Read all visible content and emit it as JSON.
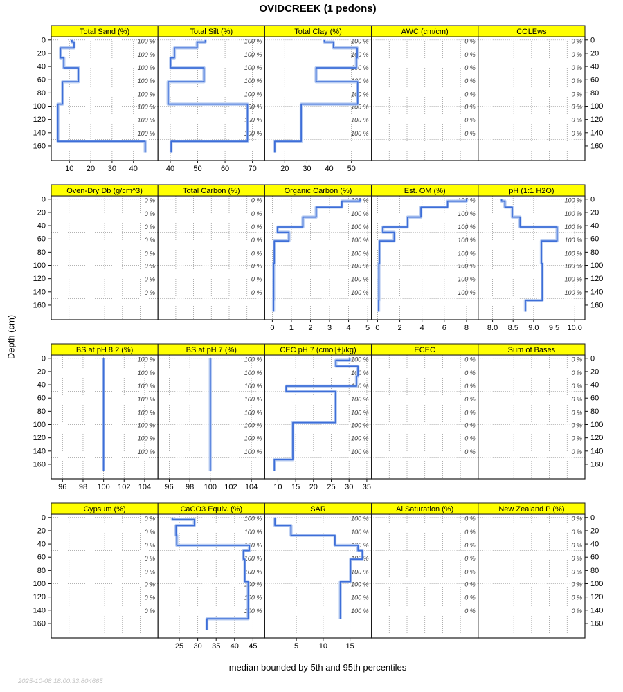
{
  "title": "OVIDCREEK (1 pedons)",
  "ylabel": "Depth (cm)",
  "caption": "median bounded by 5th and 95th percentiles",
  "timestamp": "2025-10-08 18:00:33.804665",
  "colors": {
    "strip_bg": "#FFFF00",
    "line": "#3D6ED8",
    "band": "#B9CDF2",
    "border": "#1a1a1a",
    "grid": "#999999",
    "pct_label": "#3a3a3a",
    "timestamp": "#c3c3c3"
  },
  "depth_axis": {
    "ticks": [
      0,
      20,
      40,
      60,
      80,
      100,
      120,
      140,
      160
    ],
    "ylim": [
      -5,
      182
    ],
    "grid_depths": [
      0,
      50,
      100,
      150
    ]
  },
  "pct_label_depths": [
    2,
    22,
    42,
    62,
    82,
    101,
    121,
    141
  ],
  "chart_data": {
    "type": "line",
    "subtype": "step-depth-profile",
    "x_is_value_y_is_depth_cm": true,
    "rows": [
      {
        "panels": [
          {
            "title": "Total Sand (%)",
            "pct": "100 %",
            "xlim": [
              1.5,
              51.5
            ],
            "xticks": [
              {
                "v": 10,
                "label": "10"
              },
              {
                "v": 20,
                "label": "20"
              },
              {
                "v": 30,
                "label": "30"
              },
              {
                "v": 40,
                "label": "40"
              }
            ],
            "segments": [
              [
                0,
                3,
                11.2
              ],
              [
                3,
                12,
                12.2
              ],
              [
                12,
                27,
                5.8
              ],
              [
                27,
                42,
                7.4
              ],
              [
                42,
                63,
                14.2
              ],
              [
                63,
                97,
                6.8
              ],
              [
                97,
                153,
                4.6
              ],
              [
                153,
                170,
                45.5
              ]
            ]
          },
          {
            "title": "Total Silt (%)",
            "pct": "100 %",
            "xlim": [
              35.5,
              74.5
            ],
            "xticks": [
              {
                "v": 40,
                "label": "40"
              },
              {
                "v": 50,
                "label": "50"
              },
              {
                "v": 60,
                "label": "60"
              },
              {
                "v": 70,
                "label": "70"
              }
            ],
            "segments": [
              [
                0,
                3,
                52.8
              ],
              [
                3,
                12,
                49.8
              ],
              [
                12,
                27,
                41.5
              ],
              [
                27,
                42,
                40.1
              ],
              [
                42,
                63,
                52.3
              ],
              [
                63,
                97,
                39.2
              ],
              [
                97,
                153,
                68.2
              ],
              [
                153,
                170,
                40.3
              ]
            ]
          },
          {
            "title": "Total Clay (%)",
            "pct": "100 %",
            "xlim": [
              11,
              59
            ],
            "xticks": [
              {
                "v": 20,
                "label": "20"
              },
              {
                "v": 30,
                "label": "30"
              },
              {
                "v": 40,
                "label": "40"
              },
              {
                "v": 50,
                "label": "50"
              }
            ],
            "segments": [
              [
                0,
                3,
                37.8
              ],
              [
                3,
                12,
                41.9
              ],
              [
                12,
                27,
                52.6
              ],
              [
                27,
                42,
                52.2
              ],
              [
                42,
                63,
                34.1
              ],
              [
                63,
                97,
                52.8
              ],
              [
                97,
                153,
                27.4
              ],
              [
                153,
                170,
                15.5
              ]
            ]
          },
          {
            "title": "AWC (cm/cm)",
            "pct": "0 %",
            "xlim": [
              0,
              1
            ],
            "xticks": [],
            "segments": []
          },
          {
            "title": "COLEws",
            "pct": "0 %",
            "xlim": [
              0,
              1
            ],
            "xticks": [],
            "segments": []
          }
        ]
      },
      {
        "panels": [
          {
            "title": "Oven-Dry Db (g/cm^3)",
            "pct": "0 %",
            "xlim": [
              0,
              1
            ],
            "xticks": [],
            "segments": []
          },
          {
            "title": "Total Carbon (%)",
            "pct": "0 %",
            "xlim": [
              0,
              1
            ],
            "xticks": [],
            "segments": []
          },
          {
            "title": "Organic Carbon (%)",
            "pct": "100 %",
            "xlim": [
              -0.4,
              5.2
            ],
            "xticks": [
              {
                "v": 0,
                "label": "0"
              },
              {
                "v": 1,
                "label": "1"
              },
              {
                "v": 2,
                "label": "2"
              },
              {
                "v": 3,
                "label": "3"
              },
              {
                "v": 4,
                "label": "4"
              },
              {
                "v": 5,
                "label": "5"
              }
            ],
            "segments": [
              [
                0,
                3,
                4.6
              ],
              [
                3,
                12,
                3.65
              ],
              [
                12,
                27,
                2.3
              ],
              [
                27,
                42,
                1.6
              ],
              [
                42,
                50,
                0.27
              ],
              [
                50,
                63,
                0.87
              ],
              [
                63,
                97,
                0.1
              ],
              [
                97,
                153,
                0.07
              ],
              [
                153,
                170,
                0.06
              ]
            ]
          },
          {
            "title": "Est. OM (%)",
            "pct": "100 %",
            "xlim": [
              -0.55,
              9.05
            ],
            "xticks": [
              {
                "v": 0,
                "label": "0"
              },
              {
                "v": 2,
                "label": "2"
              },
              {
                "v": 4,
                "label": "4"
              },
              {
                "v": 6,
                "label": "6"
              },
              {
                "v": 8,
                "label": "8"
              }
            ],
            "segments": [
              [
                0,
                3,
                8.0
              ],
              [
                3,
                12,
                6.3
              ],
              [
                12,
                27,
                3.9
              ],
              [
                27,
                42,
                2.7
              ],
              [
                42,
                50,
                0.47
              ],
              [
                50,
                63,
                1.5
              ],
              [
                63,
                97,
                0.18
              ],
              [
                97,
                153,
                0.12
              ],
              [
                153,
                170,
                0.1
              ]
            ]
          },
          {
            "title": "pH (1:1 H2O)",
            "pct": "100 %",
            "xlim": [
              7.65,
              10.25
            ],
            "xticks": [
              {
                "v": 8.0,
                "label": "8.0"
              },
              {
                "v": 8.5,
                "label": "8.5"
              },
              {
                "v": 9.0,
                "label": "9.0"
              },
              {
                "v": 9.5,
                "label": "9.5"
              },
              {
                "v": 10.0,
                "label": "10.0"
              }
            ],
            "segments": [
              [
                0,
                3,
                8.22
              ],
              [
                3,
                12,
                8.3
              ],
              [
                12,
                27,
                8.48
              ],
              [
                27,
                42,
                8.67
              ],
              [
                42,
                63,
                9.57
              ],
              [
                63,
                97,
                9.19
              ],
              [
                97,
                153,
                9.21
              ],
              [
                153,
                170,
                8.8
              ]
            ]
          }
        ]
      },
      {
        "panels": [
          {
            "title": "BS at pH 8.2 (%)",
            "pct": "100 %",
            "xlim": [
              94.9,
              105.3
            ],
            "xticks": [
              {
                "v": 96,
                "label": "96"
              },
              {
                "v": 98,
                "label": "98"
              },
              {
                "v": 100,
                "label": "100"
              },
              {
                "v": 102,
                "label": "102"
              },
              {
                "v": 104,
                "label": "104"
              }
            ],
            "segments": [
              [
                0,
                170,
                100
              ]
            ]
          },
          {
            "title": "BS at pH 7 (%)",
            "pct": "100 %",
            "xlim": [
              94.9,
              105.3
            ],
            "xticks": [
              {
                "v": 96,
                "label": "96"
              },
              {
                "v": 98,
                "label": "98"
              },
              {
                "v": 100,
                "label": "100"
              },
              {
                "v": 102,
                "label": "102"
              },
              {
                "v": 104,
                "label": "104"
              }
            ],
            "segments": [
              [
                0,
                170,
                100
              ]
            ]
          },
          {
            "title": "CEC pH 7 (cmol[+]/kg)",
            "pct": "100 %",
            "xlim": [
              6.3,
              36.3
            ],
            "xticks": [
              {
                "v": 10,
                "label": "10"
              },
              {
                "v": 15,
                "label": "15"
              },
              {
                "v": 20,
                "label": "20"
              },
              {
                "v": 25,
                "label": "25"
              },
              {
                "v": 30,
                "label": "30"
              },
              {
                "v": 35,
                "label": "35"
              }
            ],
            "segments": [
              [
                0,
                3,
                30.2
              ],
              [
                3,
                12,
                26.3
              ],
              [
                12,
                27,
                32.5
              ],
              [
                27,
                42,
                32.1
              ],
              [
                42,
                50,
                12.3
              ],
              [
                50,
                97,
                26.2
              ],
              [
                97,
                153,
                14.2
              ],
              [
                153,
                170,
                9.0
              ]
            ]
          },
          {
            "title": "ECEC",
            "pct": "0 %",
            "xlim": [
              0,
              1
            ],
            "xticks": [],
            "segments": []
          },
          {
            "title": "Sum of Bases",
            "pct": "0 %",
            "xlim": [
              0,
              1
            ],
            "xticks": [],
            "segments": []
          }
        ]
      },
      {
        "panels": [
          {
            "title": "Gypsum (%)",
            "pct": "0 %",
            "xlim": [
              0,
              1
            ],
            "xticks": [],
            "segments": []
          },
          {
            "title": "CaCO3 Equiv. (%)",
            "pct": "100 %",
            "xlim": [
              19.2,
              48.2
            ],
            "xticks": [
              {
                "v": 25,
                "label": "25"
              },
              {
                "v": 30,
                "label": "30"
              },
              {
                "v": 35,
                "label": "35"
              },
              {
                "v": 40,
                "label": "40"
              },
              {
                "v": 45,
                "label": "45"
              }
            ],
            "segments": [
              [
                0,
                3,
                23.1
              ],
              [
                3,
                12,
                29.1
              ],
              [
                12,
                27,
                24.1
              ],
              [
                27,
                42,
                24.3
              ],
              [
                42,
                50,
                44.0
              ],
              [
                50,
                63,
                42.4
              ],
              [
                63,
                97,
                42.8
              ],
              [
                97,
                153,
                43.7
              ],
              [
                153,
                170,
                32.5
              ]
            ]
          },
          {
            "title": "SAR",
            "pct": "100 %",
            "xlim": [
              -0.9,
              19.0
            ],
            "xticks": [
              {
                "v": 5,
                "label": "5"
              },
              {
                "v": 10,
                "label": "10"
              },
              {
                "v": 15,
                "label": "15"
              }
            ],
            "segments": [
              [
                0,
                12,
                1.0
              ],
              [
                12,
                27,
                4.0
              ],
              [
                27,
                42,
                12.2
              ],
              [
                42,
                50,
                16.5
              ],
              [
                50,
                63,
                17.3
              ],
              [
                63,
                97,
                15.1
              ],
              [
                97,
                153,
                13.2
              ]
            ]
          },
          {
            "title": "Al Saturation (%)",
            "pct": "0 %",
            "xlim": [
              0,
              1
            ],
            "xticks": [],
            "segments": []
          },
          {
            "title": "New Zealand P (%)",
            "pct": "0 %",
            "xlim": [
              0,
              1
            ],
            "xticks": [],
            "segments": []
          }
        ]
      }
    ]
  }
}
